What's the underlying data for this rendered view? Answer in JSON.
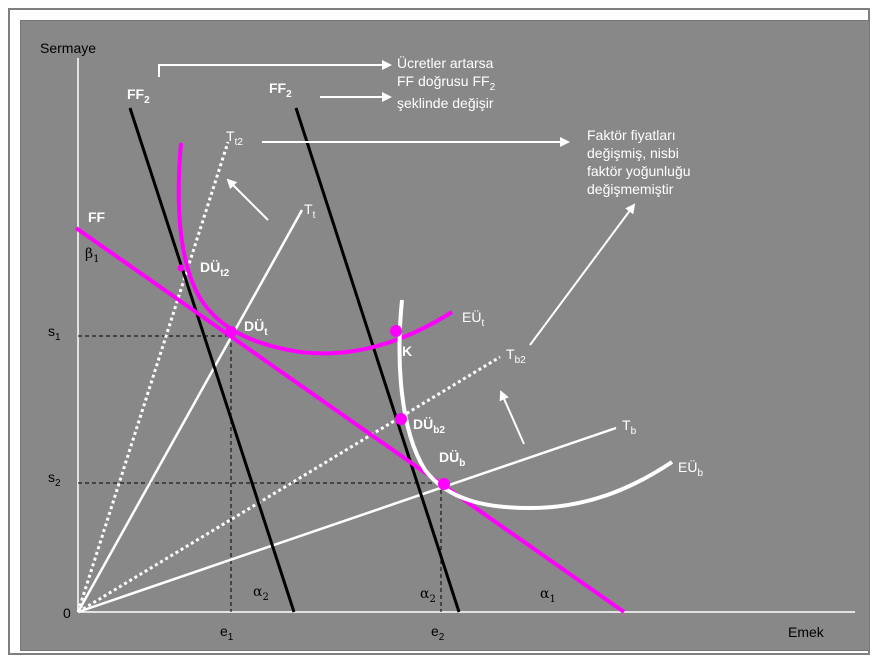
{
  "axes": {
    "y_label": "Sermaye",
    "x_label": "Emek",
    "origin": "0",
    "s1": {
      "base": "s",
      "sub": "1"
    },
    "s2": {
      "base": "s",
      "sub": "2"
    },
    "e1": {
      "base": "e",
      "sub": "1"
    },
    "e2": {
      "base": "e",
      "sub": "2"
    }
  },
  "lines": {
    "ff": "FF",
    "ff2_left": {
      "base": "FF",
      "sub": "2"
    },
    "ff2_right": {
      "base": "FF",
      "sub": "2"
    },
    "beta1": {
      "base": "β",
      "sub": "1"
    },
    "alpha1": {
      "base": "α",
      "sub": "1"
    },
    "alpha2_left": {
      "base": "α",
      "sub": "2"
    },
    "alpha2_right": {
      "base": "α",
      "sub": "2"
    },
    "tt2": {
      "base": "T",
      "sub": "t2"
    },
    "tt": {
      "base": "T",
      "sub": "t"
    },
    "tb2": {
      "base": "T",
      "sub": "b2"
    },
    "tb": {
      "base": "T",
      "sub": "b"
    }
  },
  "curves": {
    "eut": {
      "base": "EÜ",
      "sub": "t"
    },
    "eub": {
      "base": "EÜ",
      "sub": "b"
    }
  },
  "points": {
    "dut2": {
      "base": "DÜ",
      "sub": "t2"
    },
    "dut": {
      "base": "DÜ",
      "sub": "t"
    },
    "k": "K",
    "dub2": {
      "base": "DÜ",
      "sub": "b2"
    },
    "dub": {
      "base": "DÜ",
      "sub": "b"
    }
  },
  "notes": {
    "wage_line1": "Ücretler artarsa",
    "wage_line2a": "FF doğrusu FF",
    "wage_line2_sub": "2",
    "wage_line3": "şeklinde değişir",
    "factor_line1": "Faktör fiyatları",
    "factor_line2": "değişmiş, nisbi",
    "factor_line3": "faktör yoğunluğu",
    "factor_line4": "değişmemiştir"
  },
  "colors": {
    "background": "#888888",
    "magenta": "#ff00ff",
    "white": "#ffffff",
    "black": "#000000"
  }
}
